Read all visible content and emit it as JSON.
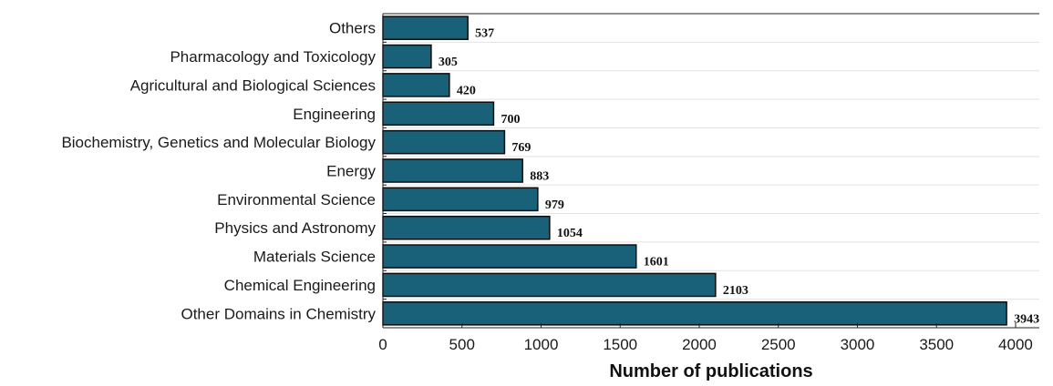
{
  "chart_data": {
    "type": "bar",
    "orientation": "horizontal",
    "categories": [
      "Others",
      "Pharmacology and Toxicology",
      "Agricultural and Biological Sciences",
      "Engineering",
      "Biochemistry, Genetics and Molecular Biology",
      "Energy",
      "Environmental Science",
      "Physics and Astronomy",
      "Materials Science",
      "Chemical Engineering",
      "Other Domains in Chemistry"
    ],
    "values": [
      537,
      305,
      420,
      700,
      769,
      883,
      979,
      1054,
      1601,
      2103,
      3943
    ],
    "value_labels": [
      "537",
      "305",
      "420",
      "700",
      "769",
      "883",
      "979",
      "1054",
      "1601",
      "2103",
      "3943"
    ],
    "xlabel": "Number of publications",
    "ylabel": "",
    "xlim": [
      0,
      4150
    ],
    "xticks": [
      0,
      500,
      1000,
      1500,
      2000,
      2500,
      3000,
      3500,
      4000
    ],
    "xtick_labels": [
      "0",
      "500",
      "1000",
      "1500",
      "2000",
      "2500",
      "3000",
      "3500",
      "4000"
    ],
    "grid": "horizontal",
    "legend": "none",
    "bar_color": "#186179",
    "bar_edge_color": "#0d0d0d",
    "grid_color": "#e3e3e3"
  }
}
